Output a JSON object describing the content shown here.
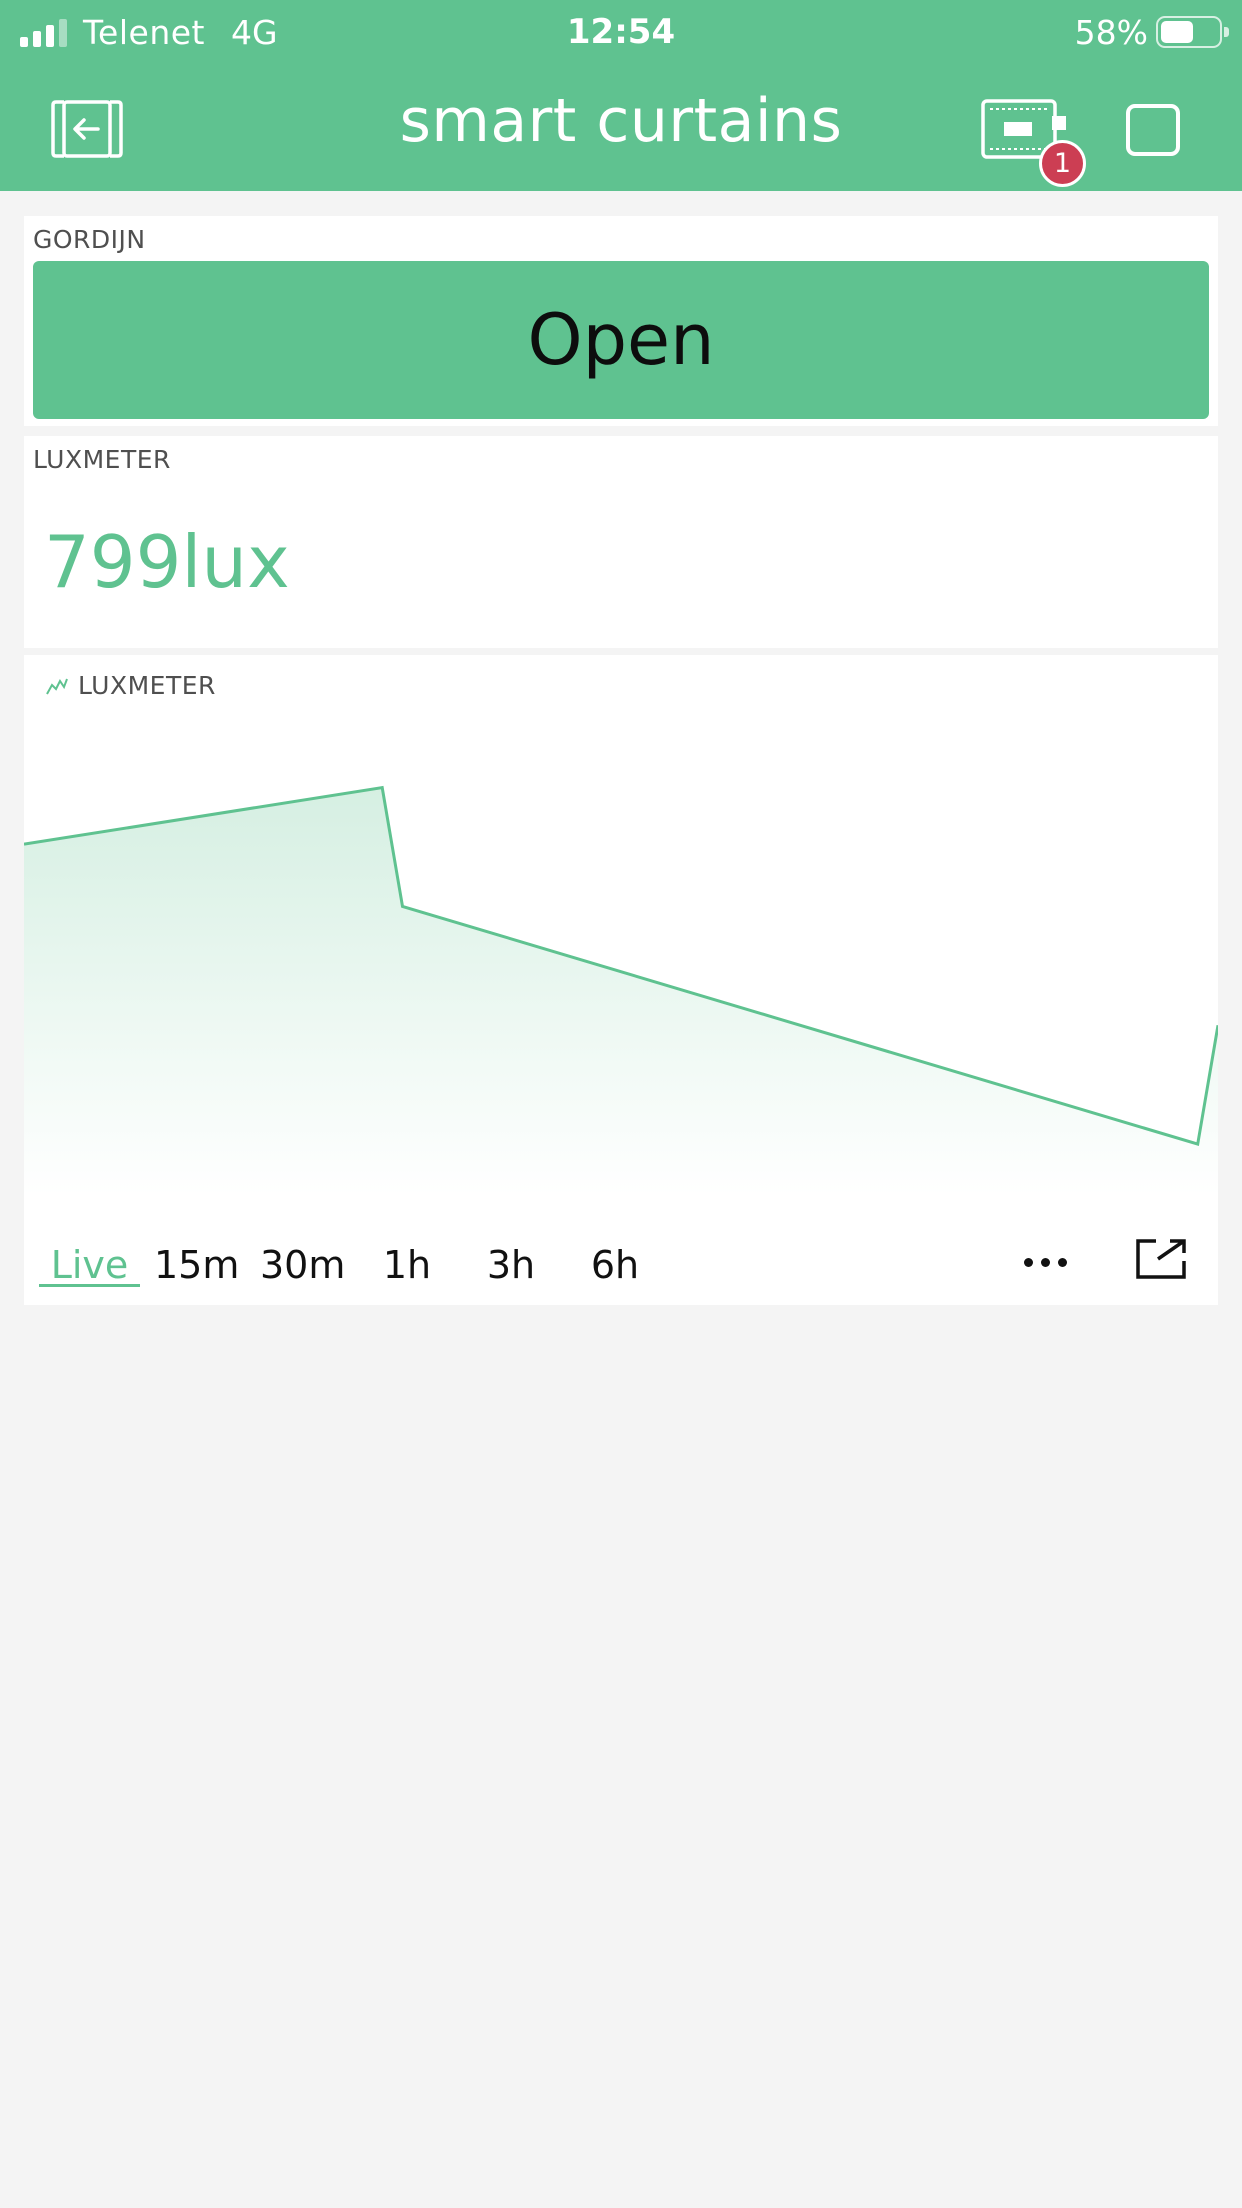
{
  "status_bar": {
    "carrier": "Telenet",
    "network": "4G",
    "time": "12:54",
    "battery_percent": "58%",
    "battery_level": 0.58
  },
  "header": {
    "title": "smart curtains",
    "notification_count": "1",
    "accent_color": "#5fc290",
    "badge_color": "#cc3e53"
  },
  "gordijn_widget": {
    "label": "GORDIJN",
    "button_label": "Open"
  },
  "lux_display": {
    "label": "LUXMETER",
    "value": "799lux"
  },
  "chart_widget": {
    "label": "LUXMETER",
    "tabs": [
      {
        "label": "Live",
        "active": true
      },
      {
        "label": "15m",
        "active": false
      },
      {
        "label": "30m",
        "active": false
      },
      {
        "label": "1h",
        "active": false
      },
      {
        "label": "3h",
        "active": false
      },
      {
        "label": "6h",
        "active": false
      }
    ],
    "icons": [
      "chart-icon",
      "more-icon",
      "expand-icon"
    ]
  },
  "chart_data": {
    "type": "area",
    "x": [
      0,
      0.3,
      0.317,
      0.983,
      1.0
    ],
    "values": [
      830,
      880,
      775,
      565,
      670
    ],
    "ylim": [
      520,
      900
    ],
    "title": "LUXMETER",
    "xlabel": "",
    "ylabel": "",
    "grid": false
  }
}
